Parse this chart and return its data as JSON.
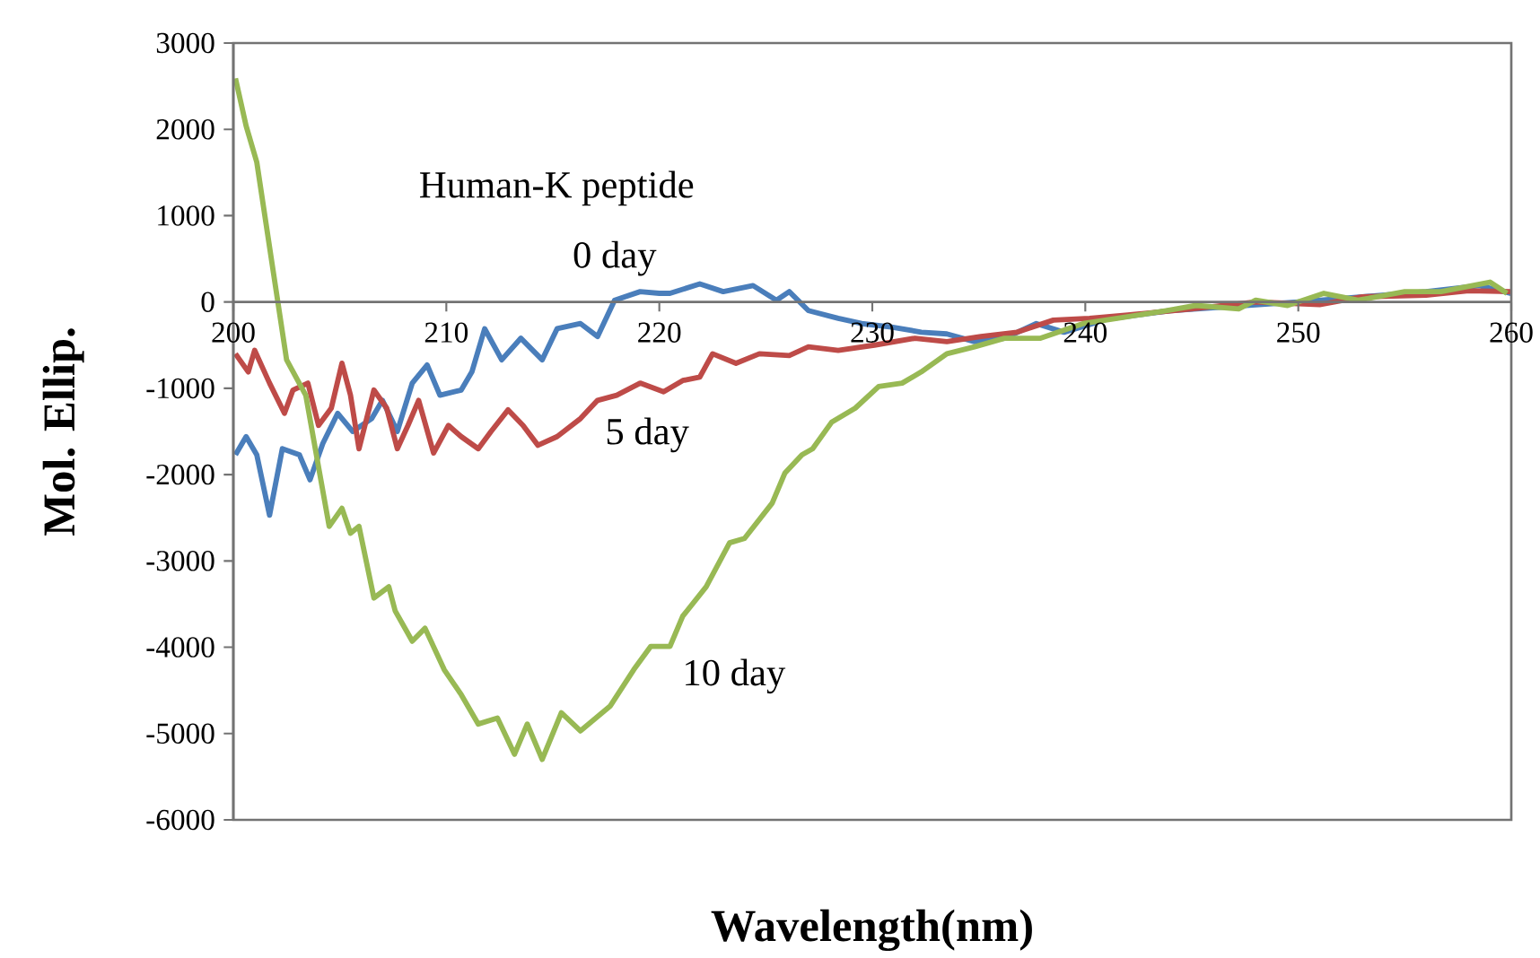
{
  "chart_data": {
    "type": "line",
    "xlabel": "Wavelength(nm)",
    "ylabel": "Mol. Ellip.",
    "annotations": [
      "Human-K peptide"
    ],
    "xlim": [
      200,
      260
    ],
    "xticks": [
      200,
      210,
      220,
      230,
      240,
      250,
      260
    ],
    "ylim": [
      -6000,
      3000
    ],
    "yticks": [
      -6000,
      -5000,
      -4000,
      -3000,
      -2000,
      -1000,
      0,
      1000,
      2000,
      3000
    ],
    "grid": false,
    "legend": false,
    "marker": "none",
    "line_style": "solid",
    "series": [
      {
        "name": "0 day",
        "color": "#4a7ebb",
        "x": [
          200.1,
          200.6,
          201.1,
          201.7,
          202.3,
          203.1,
          203.6,
          204.2,
          204.9,
          205.6,
          206.5,
          207.0,
          207.7,
          208.4,
          209.1,
          209.7,
          210.7,
          211.2,
          211.8,
          212.6,
          213.5,
          214.5,
          215.2,
          216.3,
          217.1,
          217.9,
          219.1,
          220.0,
          220.5,
          221.9,
          223.0,
          224.4,
          225.5,
          226.1,
          227.0,
          228.4,
          229.5,
          230.9,
          232.3,
          233.5,
          234.8,
          236.2,
          237.7,
          239.0,
          241.0,
          244.0,
          247.0,
          250.0,
          253.0,
          256.0,
          258.5,
          260.0
        ],
        "values": [
          -1770,
          -1560,
          -1770,
          -2470,
          -1700,
          -1770,
          -2060,
          -1640,
          -1290,
          -1500,
          -1350,
          -1140,
          -1500,
          -940,
          -730,
          -1080,
          -1020,
          -810,
          -310,
          -670,
          -420,
          -670,
          -310,
          -250,
          -400,
          20,
          120,
          100,
          100,
          210,
          120,
          190,
          20,
          120,
          -100,
          -190,
          -250,
          -290,
          -350,
          -370,
          -460,
          -420,
          -250,
          -350,
          -200,
          -100,
          -50,
          0,
          60,
          120,
          190,
          100
        ]
      },
      {
        "name": "5 day",
        "color": "#be4b48",
        "x": [
          200.1,
          200.7,
          201.0,
          201.7,
          202.4,
          202.8,
          203.5,
          204.0,
          204.6,
          205.1,
          205.5,
          205.9,
          206.6,
          207.2,
          207.7,
          208.2,
          208.7,
          209.4,
          210.1,
          210.7,
          211.5,
          212.1,
          212.9,
          213.6,
          214.3,
          215.2,
          216.3,
          217.1,
          218.0,
          219.1,
          220.2,
          221.1,
          221.9,
          222.5,
          223.6,
          224.7,
          226.1,
          227.0,
          228.4,
          230.1,
          232.0,
          233.5,
          235.1,
          236.8,
          238.5,
          240.2,
          242.0,
          245.0,
          248.0,
          251.0,
          253.0,
          256.0,
          258.0,
          260.0
        ],
        "values": [
          -600,
          -810,
          -560,
          -940,
          -1290,
          -1020,
          -940,
          -1430,
          -1230,
          -710,
          -1080,
          -1700,
          -1020,
          -1230,
          -1700,
          -1430,
          -1140,
          -1750,
          -1430,
          -1560,
          -1700,
          -1500,
          -1250,
          -1430,
          -1660,
          -1560,
          -1350,
          -1140,
          -1080,
          -940,
          -1040,
          -910,
          -870,
          -600,
          -710,
          -600,
          -620,
          -520,
          -560,
          -500,
          -420,
          -460,
          -400,
          -350,
          -210,
          -190,
          -150,
          -80,
          0,
          -30,
          60,
          80,
          130,
          120
        ]
      },
      {
        "name": "10 day",
        "color": "#98b954",
        "x": [
          200.1,
          200.6,
          201.1,
          201.9,
          202.5,
          203.4,
          204.0,
          204.5,
          205.1,
          205.5,
          205.9,
          206.6,
          207.3,
          207.6,
          208.4,
          209.0,
          209.9,
          210.7,
          211.5,
          212.4,
          213.2,
          213.8,
          214.5,
          215.4,
          216.3,
          217.7,
          218.8,
          219.6,
          220.5,
          221.1,
          222.2,
          223.3,
          224.0,
          225.3,
          225.9,
          226.7,
          227.2,
          228.1,
          229.2,
          230.3,
          231.4,
          232.3,
          233.5,
          234.8,
          236.2,
          237.9,
          239.9,
          241.5,
          243.8,
          245.2,
          247.2,
          248.0,
          249.5,
          251.2,
          252.8,
          255.0,
          256.7,
          259.0,
          259.8
        ],
        "values": [
          2590,
          2040,
          1620,
          310,
          -670,
          -1080,
          -1910,
          -2600,
          -2390,
          -2680,
          -2600,
          -3430,
          -3300,
          -3580,
          -3930,
          -3780,
          -4260,
          -4550,
          -4890,
          -4820,
          -5240,
          -4890,
          -5300,
          -4760,
          -4970,
          -4680,
          -4260,
          -3990,
          -3990,
          -3640,
          -3300,
          -2790,
          -2740,
          -2330,
          -1980,
          -1770,
          -1700,
          -1390,
          -1230,
          -980,
          -940,
          -810,
          -600,
          -520,
          -420,
          -420,
          -250,
          -190,
          -100,
          -40,
          -80,
          20,
          -40,
          100,
          20,
          120,
          120,
          230,
          100
        ]
      }
    ]
  }
}
